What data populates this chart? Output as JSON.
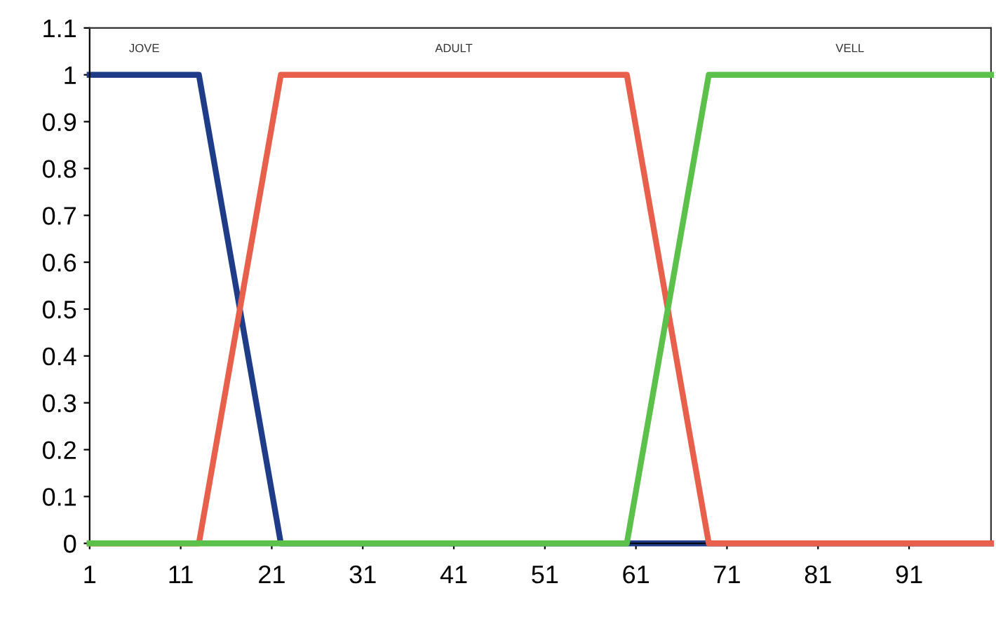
{
  "chart_data": {
    "type": "line",
    "series": [
      {
        "name": "JOVE",
        "color": "#1f3c88",
        "x": [
          1,
          13,
          22,
          100
        ],
        "values": [
          1,
          1,
          0,
          0
        ]
      },
      {
        "name": "ADULT",
        "color": "#e8604c",
        "x": [
          1,
          13,
          22,
          60,
          69,
          100
        ],
        "values": [
          0,
          0,
          1,
          1,
          0,
          0
        ]
      },
      {
        "name": "VELL",
        "color": "#5cc14a",
        "x": [
          1,
          60,
          69,
          100
        ],
        "values": [
          0,
          0,
          1,
          1
        ]
      }
    ],
    "xlim": [
      1,
      100
    ],
    "xticks": [
      1,
      11,
      21,
      31,
      41,
      51,
      61,
      71,
      81,
      91
    ],
    "ylim": [
      0,
      1.1
    ],
    "yticks": [
      0,
      0.1,
      0.2,
      0.3,
      0.4,
      0.5,
      0.6,
      0.7,
      0.8,
      0.9,
      1,
      1.1
    ],
    "grid": false,
    "legend": false,
    "marker": "none",
    "line_style": "solid"
  }
}
